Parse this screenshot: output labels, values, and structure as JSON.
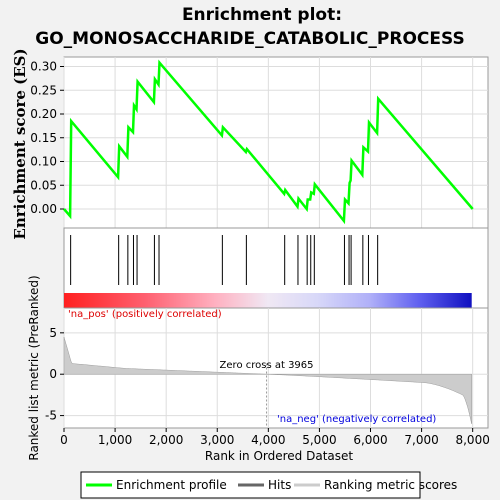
{
  "chart_data": {
    "type": "line",
    "title_line1": "Enrichment plot:",
    "title_line2": "GO_MONOSACCHARIDE_CATABOLIC_PROCESS",
    "es_panel": {
      "ylabel": "Enrichment score (ES)",
      "ylim": [
        -0.04,
        0.32
      ],
      "yticks": [
        "0.00",
        "0.05",
        "0.10",
        "0.15",
        "0.20",
        "0.25",
        "0.30"
      ],
      "ytick_values": [
        0.0,
        0.05,
        0.1,
        0.15,
        0.2,
        0.25,
        0.3
      ],
      "series": [
        {
          "name": "Enrichment profile",
          "color": "#00ff00",
          "x": [
            0,
            120,
            140,
            1060,
            1080,
            1240,
            1260,
            1350,
            1370,
            1420,
            1440,
            1760,
            1780,
            1850,
            1870,
            3090,
            3110,
            3560,
            3580,
            4310,
            4330,
            4570,
            4590,
            4750,
            4770,
            4820,
            4840,
            4890,
            4910,
            5480,
            5500,
            5570,
            5590,
            5610,
            5630,
            5840,
            5860,
            5950,
            5970,
            6130,
            6150,
            8000
          ],
          "y": [
            0.0,
            -0.015,
            0.185,
            0.067,
            0.132,
            0.11,
            0.172,
            0.162,
            0.218,
            0.21,
            0.268,
            0.225,
            0.273,
            0.262,
            0.308,
            0.155,
            0.172,
            0.12,
            0.126,
            0.032,
            0.04,
            0.005,
            0.022,
            0.0,
            0.02,
            0.02,
            0.035,
            0.032,
            0.052,
            -0.025,
            0.02,
            0.012,
            0.055,
            0.06,
            0.102,
            0.072,
            0.13,
            0.121,
            0.182,
            0.16,
            0.232,
            0.0
          ]
        }
      ]
    },
    "hits": {
      "name": "Hits",
      "x": [
        130,
        1070,
        1250,
        1360,
        1430,
        1770,
        1860,
        3100,
        3570,
        4320,
        4580,
        4760,
        4830,
        4900,
        5490,
        5580,
        5620,
        5850,
        5960,
        6140
      ]
    },
    "metric_panel": {
      "name": "Ranking metric scores",
      "ylabel": "Ranked list metric (PreRanked)",
      "ylim": [
        -6.5,
        8.0
      ],
      "yticks": [
        "5",
        "0",
        "-5"
      ],
      "ytick_values": [
        5,
        0,
        -5
      ],
      "n_genes": 7980,
      "zero_cross": 3965,
      "zero_cross_label": "Zero cross at 3965",
      "pos_label": "'na_pos' (positively correlated)",
      "neg_label": "'na_neg' (negatively correlated)"
    },
    "xlabel": "Rank in Ordered Dataset",
    "xlim": [
      0,
      8300
    ],
    "xticks": [
      "0",
      "1,000",
      "2,000",
      "3,000",
      "4,000",
      "5,000",
      "6,000",
      "7,000",
      "8,000"
    ],
    "xtick_values": [
      0,
      1000,
      2000,
      3000,
      4000,
      5000,
      6000,
      7000,
      8000
    ],
    "legend": {
      "placement": "bottom",
      "items": [
        {
          "label": "Enrichment profile",
          "color": "#00ff00"
        },
        {
          "label": "Hits",
          "color": "#666666"
        },
        {
          "label": "Ranking metric scores",
          "color": "#cccccc"
        }
      ]
    },
    "colors": {
      "pos_text": "#dd0000",
      "neg_text": "#0000dd",
      "grid": "#dddddd"
    }
  }
}
